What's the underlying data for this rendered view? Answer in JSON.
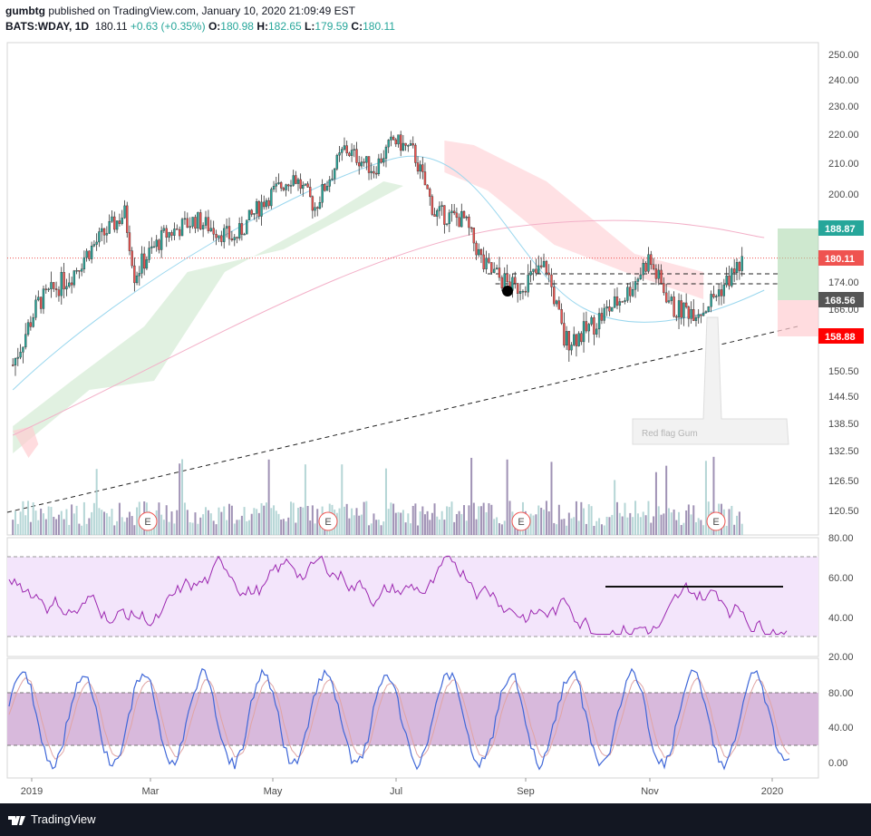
{
  "header": {
    "line1_user": "gumbtg",
    "line1_rest": " published on TradingView.com, January 10, 2020 21:09:49 EST",
    "symbol": "BATS:WDAY, 1D",
    "last": "180.11",
    "change": "+0.63 (+0.35%)",
    "o_label": "O:",
    "o": "180.98",
    "h_label": "H:",
    "h": "182.65",
    "l_label": "L:",
    "l": "179.59",
    "c_label": "C:",
    "c": "180.11"
  },
  "footer": {
    "brand": "TradingView"
  },
  "annotation": "Red flag Gum",
  "colors": {
    "up": "#26a69a",
    "down": "#ef5350",
    "rsi": "#9c27b0",
    "stoch_k": "#3f67d8",
    "stoch_d": "#e0a4a4",
    "grid_bg_rsi": "#f3e5fb",
    "grid_bg_stoch": "#d8b9dc"
  },
  "chart_data": [
    {
      "type": "candlestick",
      "symbol": "BATS:WDAY",
      "interval": "1D",
      "price_axis": [
        "250.00",
        "240.00",
        "230.00",
        "220.00",
        "210.00",
        "200.00",
        "180.00",
        "174.00",
        "166.00",
        "150.50",
        "144.50",
        "138.50",
        "132.50",
        "126.50",
        "120.50"
      ],
      "time_axis": [
        "2019",
        "Mar",
        "May",
        "Jul",
        "Sep",
        "Nov",
        "2020"
      ],
      "price_tags": [
        {
          "label": "188.87",
          "color": "#26a69a"
        },
        {
          "label": "180.11",
          "color": "#ef5350"
        },
        {
          "label": "168.56",
          "color": "#555555"
        },
        {
          "label": "158.88",
          "color": "#ff0000"
        }
      ],
      "earnings_markers": [
        "E",
        "E",
        "E",
        "E"
      ],
      "last_close": 180.11,
      "approx_path": [
        {
          "x": "2019-01-02",
          "close": 152
        },
        {
          "x": "2019-01-15",
          "close": 168
        },
        {
          "x": "2019-02-01",
          "close": 176
        },
        {
          "x": "2019-02-15",
          "close": 186
        },
        {
          "x": "2019-02-28",
          "close": 194
        },
        {
          "x": "2019-03-05",
          "close": 176
        },
        {
          "x": "2019-03-20",
          "close": 187
        },
        {
          "x": "2019-04-05",
          "close": 192
        },
        {
          "x": "2019-04-25",
          "close": 186
        },
        {
          "x": "2019-05-10",
          "close": 198
        },
        {
          "x": "2019-05-25",
          "close": 206
        },
        {
          "x": "2019-06-05",
          "close": 196
        },
        {
          "x": "2019-06-20",
          "close": 215
        },
        {
          "x": "2019-07-05",
          "close": 208
        },
        {
          "x": "2019-07-15",
          "close": 218
        },
        {
          "x": "2019-07-25",
          "close": 214
        },
        {
          "x": "2019-08-05",
          "close": 194
        },
        {
          "x": "2019-08-20",
          "close": 192
        },
        {
          "x": "2019-08-30",
          "close": 178
        },
        {
          "x": "2019-09-15",
          "close": 172
        },
        {
          "x": "2019-10-01",
          "close": 178
        },
        {
          "x": "2019-10-10",
          "close": 158
        },
        {
          "x": "2019-10-20",
          "close": 160
        },
        {
          "x": "2019-11-10",
          "close": 170
        },
        {
          "x": "2019-11-22",
          "close": 180
        },
        {
          "x": "2019-12-05",
          "close": 166
        },
        {
          "x": "2019-12-20",
          "close": 166
        },
        {
          "x": "2020-01-10",
          "close": 180.11
        }
      ]
    },
    {
      "type": "line",
      "name": "RSI",
      "y_axis": [
        "80.00",
        "60.00",
        "40.00",
        "20.00"
      ],
      "ylim": [
        20,
        80
      ],
      "bands": [
        70,
        30
      ]
    },
    {
      "type": "line",
      "name": "Stochastic",
      "y_axis": [
        "80.00",
        "40.00",
        "0.00"
      ],
      "ylim": [
        0,
        100
      ],
      "bands": [
        80,
        20
      ]
    }
  ]
}
